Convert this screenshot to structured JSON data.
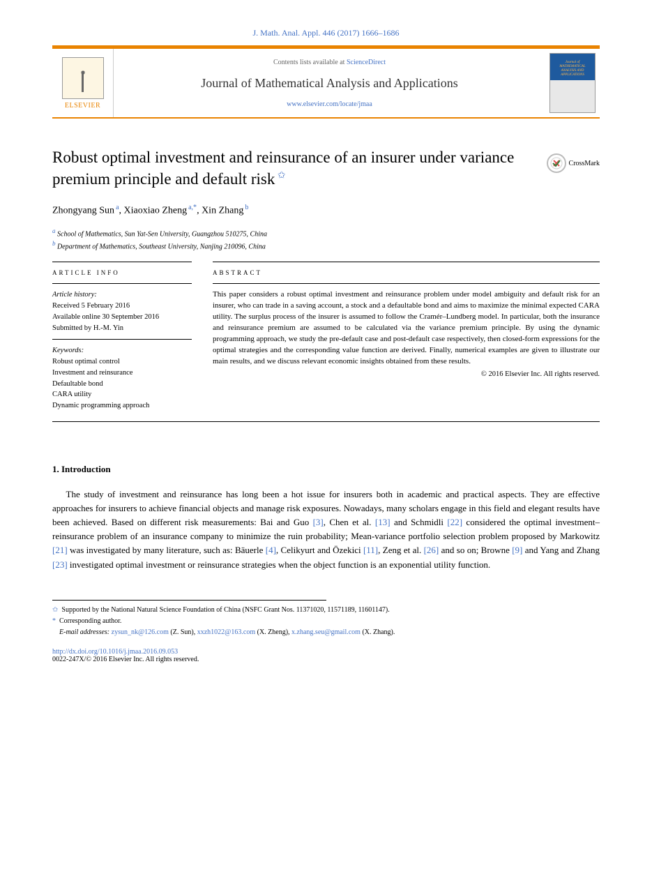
{
  "header": {
    "journal_ref": "J. Math. Anal. Appl. 446 (2017) 1666–1686",
    "contents_prefix": "Contents lists available at ",
    "contents_link": "ScienceDirect",
    "journal_name": "Journal of Mathematical Analysis and Applications",
    "locate_url": "www.elsevier.com/locate/jmaa",
    "publisher": "ELSEVIER",
    "cover_text": "Journal of MATHEMATICAL ANALYSIS AND APPLICATIONS"
  },
  "article": {
    "title": "Robust optimal investment and reinsurance of an insurer under variance premium principle and default risk",
    "crossmark": "CrossMark",
    "authors_html": [
      {
        "name": "Zhongyang Sun",
        "aff": "a"
      },
      {
        "name": "Xiaoxiao Zheng",
        "aff": "a,*"
      },
      {
        "name": "Xin Zhang",
        "aff": "b"
      }
    ],
    "affiliations": [
      {
        "marker": "a",
        "text": "School of Mathematics, Sun Yat-Sen University, Guangzhou 510275, China"
      },
      {
        "marker": "b",
        "text": "Department of Mathematics, Southeast University, Nanjing 210096, China"
      }
    ]
  },
  "info": {
    "label": "ARTICLE INFO",
    "history_label": "Article history:",
    "received": "Received 5 February 2016",
    "online": "Available online 30 September 2016",
    "submitted": "Submitted by H.-M. Yin",
    "keywords_label": "Keywords:",
    "keywords": [
      "Robust optimal control",
      "Investment and reinsurance",
      "Defaultable bond",
      "CARA utility",
      "Dynamic programming approach"
    ]
  },
  "abstract": {
    "label": "ABSTRACT",
    "text": "This paper considers a robust optimal investment and reinsurance problem under model ambiguity and default risk for an insurer, who can trade in a saving account, a stock and a defaultable bond and aims to maximize the minimal expected CARA utility. The surplus process of the insurer is assumed to follow the Cramér–Lundberg model. In particular, both the insurance and reinsurance premium are assumed to be calculated via the variance premium principle. By using the dynamic programming approach, we study the pre-default case and post-default case respectively, then closed-form expressions for the optimal strategies and the corresponding value function are derived. Finally, numerical examples are given to illustrate our main results, and we discuss relevant economic insights obtained from these results.",
    "copyright": "© 2016 Elsevier Inc. All rights reserved."
  },
  "body": {
    "heading": "1. Introduction",
    "paragraph": "The study of investment and reinsurance has long been a hot issue for insurers both in academic and practical aspects. They are effective approaches for insurers to achieve financial objects and manage risk exposures. Nowadays, many scholars engage in this field and elegant results have been achieved. Based on different risk measurements: Bai and Guo [3], Chen et al. [13] and Schmidli [22] considered the optimal investment–reinsurance problem of an insurance company to minimize the ruin probability; Mean-variance portfolio selection problem proposed by Markowitz [21] was investigated by many literature, such as: Bäuerle [4], Celikyurt and Özekici [11], Zeng et al. [26] and so on; Browne [9] and Yang and Zhang [23] investigated optimal investment or reinsurance strategies when the object function is an exponential utility function.",
    "citations": [
      "[3]",
      "[13]",
      "[22]",
      "[21]",
      "[4]",
      "[11]",
      "[26]",
      "[9]",
      "[23]"
    ]
  },
  "footnotes": {
    "funding_marker": "✩",
    "funding": "Supported by the National Natural Science Foundation of China (NSFC Grant Nos. 11371020, 11571189, 11601147).",
    "corresponding_marker": "*",
    "corresponding": "Corresponding author.",
    "email_label": "E-mail addresses:",
    "emails": [
      {
        "addr": "zysun_nk@126.com",
        "who": "(Z. Sun)"
      },
      {
        "addr": "xxzh1022@163.com",
        "who": "(X. Zheng)"
      },
      {
        "addr": "x.zhang.seu@gmail.com",
        "who": "(X. Zhang)"
      }
    ]
  },
  "doi": {
    "url": "http://dx.doi.org/10.1016/j.jmaa.2016.09.053",
    "issn_line": "0022-247X/© 2016 Elsevier Inc. All rights reserved."
  },
  "colors": {
    "accent_orange": "#e98300",
    "link_blue": "#4472c4",
    "cover_blue": "#1e5a9e",
    "text": "#000000",
    "bg": "#ffffff"
  }
}
